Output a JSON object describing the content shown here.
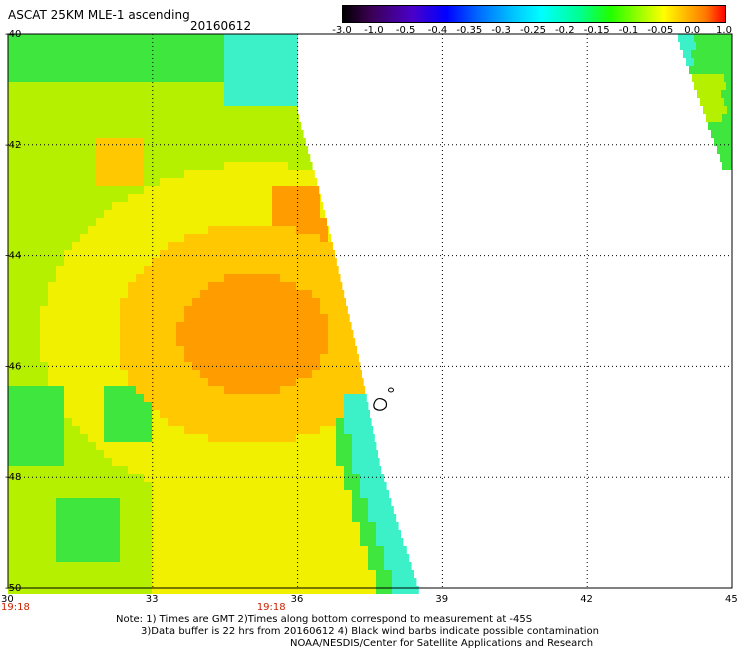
{
  "header": {
    "title": "ASCAT 25KM MLE-1 ascending",
    "date": "20160612"
  },
  "colorbar": {
    "labels": [
      "-3.0",
      "-1.0",
      "-0.5",
      "-0.4",
      "-0.35",
      "-0.3",
      "-0.25",
      "-0.2",
      "-0.15",
      "-0.1",
      "-0.05",
      "0.0",
      "1.0"
    ],
    "colors": [
      "#000000",
      "#4b00c8",
      "#0000ff",
      "#00c8ff",
      "#00ffff",
      "#00ff90",
      "#20ff00",
      "#a0ff00",
      "#ffff00",
      "#ffb400",
      "#ff7800",
      "#ff0000"
    ]
  },
  "map": {
    "lat_labels": [
      "-40",
      "-42",
      "-44",
      "-46",
      "-48",
      "-50"
    ],
    "lon_labels": [
      "30",
      "33",
      "36",
      "39",
      "42",
      "45"
    ],
    "lat_range": [
      -50,
      -40
    ],
    "lon_range": [
      30,
      45
    ],
    "time_labels": [
      {
        "lon": 30,
        "text": "19:18"
      },
      {
        "lon": 35.3,
        "text": "19:18"
      }
    ],
    "field_colors": {
      "green": "#3ee63e",
      "yellow_green": "#b4f000",
      "yellow": "#f0f000",
      "orange_yellow": "#ffc800",
      "orange": "#ff9c00",
      "cyan": "#3cf0c8"
    }
  },
  "notes": {
    "line1": "Note: 1) Times are GMT 2)Times along bottom correspond to measurement at -45S",
    "line2": "3)Data buffer is 22 hrs from 20160612 4) Black wind barbs indicate possible contamination",
    "line3": "NOAA/NESDIS/Center for Satellite Applications and Research"
  }
}
